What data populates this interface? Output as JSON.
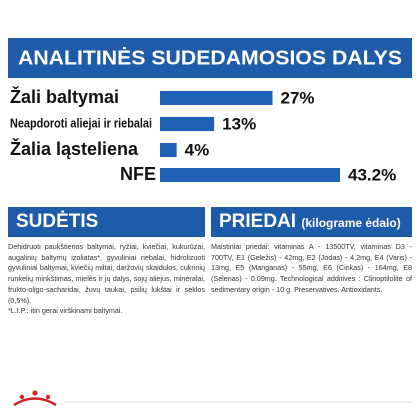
{
  "chart_data": {
    "type": "bar",
    "orientation": "horizontal",
    "title": "ANALITINĖS SUDEDAMOSIOS DALYS",
    "categories": [
      "Žali baltymai",
      "Neapdoroti aliejai ir riebalai",
      "Žalia ląsteliena",
      "NFE"
    ],
    "values": [
      27,
      13,
      4,
      43.2
    ],
    "value_labels": [
      "27%",
      "13%",
      "4%",
      "43.2%"
    ],
    "color": "#1e63b6"
  },
  "sections": [
    {
      "title": "SUDĖTIS",
      "text": "Dehidruoti paukštienos baltymai, ryžiai, kviečiai, kukurūzai, augalinių baltymų izoliatas*, gyvuliniai riebalai, hidrolizuoti gyvuliniai baltymai, kviečių miltai, daržovių skaidulos, cukrinių runkelių minkštimas, mielės ir jų dalys, sojų aliejus, mineralai, frukto-oligo-sacharidai, žuvų taukai, psilių lukštai ir sėklos (0,5%).",
      "note": "*L.I.P.: itin gerai virškinami baltymai."
    },
    {
      "title": "PRIEDAI",
      "subtitle": "(kilograme ėdalo)",
      "text": "Maistiniai priedai: vitaminas A - 13500TV, vitaminas D3 - 700TV, E1 (Geležis) - 42mg, E2 (Jodas) - 4,2mg, E4 (Varis) - 13mg, E5 (Manganas) - 55mg, E6 (Cinkas) - 164mg, E8 (Selenas) - 0.09mg. Technological additives : Clinoptilolite of sedimentary origin - 10 g. Preservatives. Antioxidants."
    }
  ]
}
